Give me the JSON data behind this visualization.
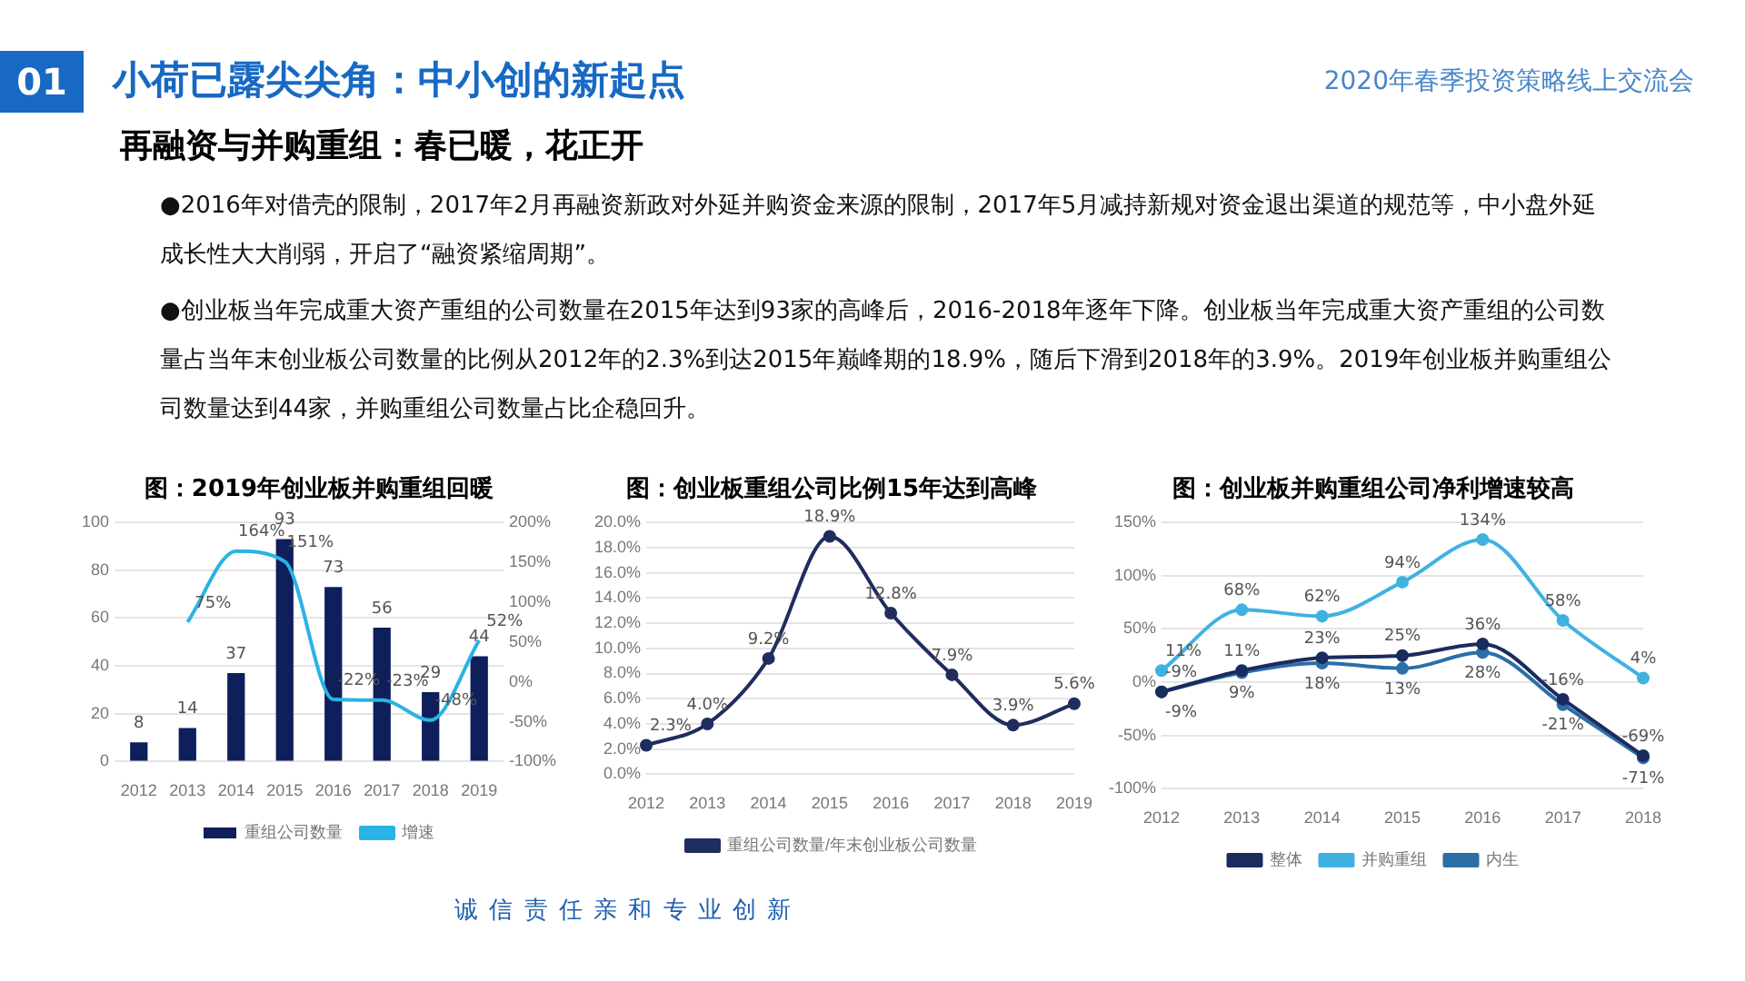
{
  "chart_data": [
    {
      "type": "other",
      "title": "小荷已露尖尖角：中小创的新起点",
      "subtitle": "再融资与并购重组：春已暖，花正开",
      "annotations": [
        "01",
        "2020年春季投资策略线上交流会",
        "●2016年对借壳的限制，2017年2月再融资新政对外延并购资金来源的限制，2017年5月减持新规对资金退出渠道的规范等，中小盘外延成长性大大削弱，开启了“融资紧缩周期”。",
        "●创业板当年完成重大资产重组的公司数量在2015年达到93家的高峰后，2016-2018年逐年下降。创业板当年完成重大资产重组的公司数量占当年末创业板公司数量的比例从2012年的2.3%到达2015年巅峰期的18.9%，随后下滑到2018年的3.9%。2019年创业板并购重组公司数量达到44家，并购重组公司数量占比企稳回升。",
        "诚 信 责 任 亲 和 专 业 创 新"
      ]
    },
    {
      "type": "bar",
      "title": "图：2019年创业板并购重组回暖",
      "categories": [
        "2012",
        "2013",
        "2014",
        "2015",
        "2016",
        "2017",
        "2018",
        "2019"
      ],
      "series": [
        {
          "name": "重组公司数量",
          "color": "#0e1f5b",
          "values": [
            8,
            14,
            37,
            93,
            73,
            56,
            29,
            44
          ],
          "value_labels": [
            "8",
            "14",
            "37",
            "93",
            "73",
            "56",
            "29",
            "44"
          ]
        },
        {
          "name": "增速",
          "type": "line",
          "axis": "y2",
          "color": "#29b3e6",
          "values": [
            null,
            75,
            164,
            151,
            -22,
            -23,
            -48,
            52
          ],
          "value_labels": [
            null,
            "75%",
            "164%",
            "151%",
            "-22%",
            "-23%",
            "-48%",
            "52%"
          ]
        }
      ],
      "ylim": [
        0,
        100
      ],
      "yticks": [
        0,
        20,
        40,
        60,
        80,
        100
      ],
      "y2lim": [
        -100,
        200
      ],
      "y2ticks": [
        {
          "value": -100,
          "label": "-100%"
        },
        {
          "value": -50,
          "label": "-50%"
        },
        {
          "value": 0,
          "label": "0%"
        },
        {
          "value": 50,
          "label": "50%"
        },
        {
          "value": 100,
          "label": "100%"
        },
        {
          "value": 150,
          "label": "150%"
        },
        {
          "value": 200,
          "label": "200%"
        }
      ],
      "grid": "y",
      "legend": "bottom"
    },
    {
      "type": "line",
      "title": "图：创业板重组公司比例15年达到高峰",
      "categories": [
        "2012",
        "2013",
        "2014",
        "2015",
        "2016",
        "2017",
        "2018",
        "2019"
      ],
      "series": [
        {
          "name": "重组公司数量/年末创业板公司数量",
          "color": "#1f2d5f",
          "values": [
            2.3,
            4.0,
            9.2,
            18.9,
            12.8,
            7.9,
            3.9,
            5.6
          ],
          "value_labels": [
            "2.3%",
            "4.0%",
            "9.2%",
            "18.9%",
            "12.8%",
            "7.9%",
            "3.9%",
            "5.6%"
          ]
        }
      ],
      "ylim": [
        0,
        20
      ],
      "yticks": [
        {
          "value": 0,
          "label": "0.0%"
        },
        {
          "value": 2,
          "label": "2.0%"
        },
        {
          "value": 4,
          "label": "4.0%"
        },
        {
          "value": 6,
          "label": "6.0%"
        },
        {
          "value": 8,
          "label": "8.0%"
        },
        {
          "value": 10,
          "label": "10.0%"
        },
        {
          "value": 12,
          "label": "12.0%"
        },
        {
          "value": 14,
          "label": "14.0%"
        },
        {
          "value": 16,
          "label": "16.0%"
        },
        {
          "value": 18,
          "label": "18.0%"
        },
        {
          "value": 20,
          "label": "20.0%"
        }
      ],
      "grid": "y",
      "legend": "bottom",
      "marker": "circle"
    },
    {
      "type": "line",
      "title": "图：创业板并购重组公司净利增速较高",
      "categories": [
        "2012",
        "2013",
        "2014",
        "2015",
        "2016",
        "2017",
        "2018"
      ],
      "series": [
        {
          "name": "整体",
          "color": "#1a2b5e",
          "values": [
            -9,
            11,
            23,
            25,
            36,
            -16,
            -69
          ],
          "value_labels": [
            "-9%",
            "11%",
            "23%",
            "25%",
            "36%",
            "-16%",
            "-69%"
          ]
        },
        {
          "name": "并购重组",
          "color": "#3fb2e2",
          "values": [
            11,
            68,
            62,
            94,
            134,
            58,
            4
          ],
          "value_labels": [
            "11%",
            "68%",
            "62%",
            "94%",
            "134%",
            "58%",
            "4%"
          ]
        },
        {
          "name": "内生",
          "color": "#2c6ea6",
          "values": [
            -9,
            9,
            18,
            13,
            28,
            -21,
            -71
          ],
          "value_labels": [
            "-9%",
            "9%",
            "18%",
            "13%",
            "28%",
            "-21%",
            "-71%"
          ]
        }
      ],
      "ylim": [
        -100,
        150
      ],
      "yticks": [
        {
          "value": -100,
          "label": "-100%"
        },
        {
          "value": -50,
          "label": "-50%"
        },
        {
          "value": 0,
          "label": "0%"
        },
        {
          "value": 50,
          "label": "50%"
        },
        {
          "value": 100,
          "label": "100%"
        },
        {
          "value": 150,
          "label": "150%"
        }
      ],
      "grid": "y",
      "legend": "bottom",
      "marker": "circle"
    }
  ]
}
